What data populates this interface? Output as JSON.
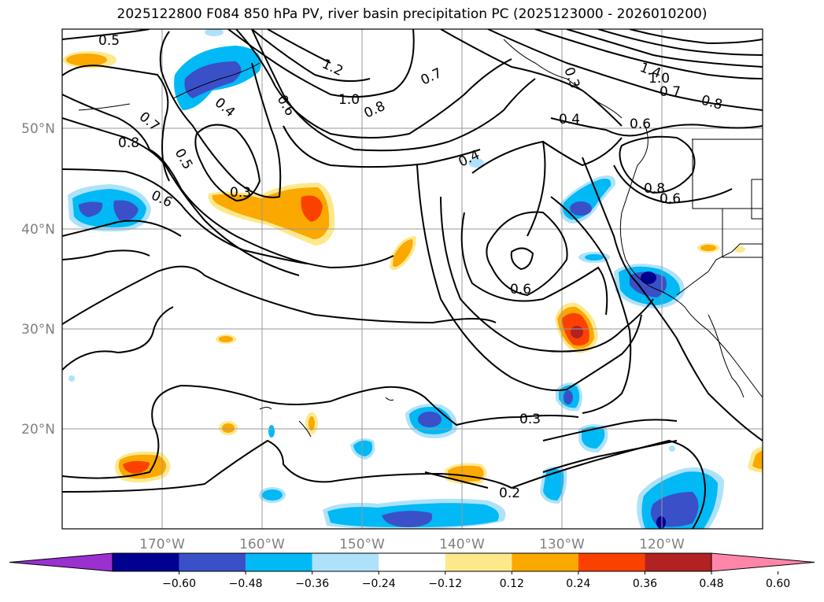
{
  "title": "2025122800 F084 850 hPa PV, river basin precipitation PC (2025123000 - 2026010200)",
  "lat_labels": [
    "50°N",
    "40°N",
    "30°N",
    "20°N"
  ],
  "lon_labels": [
    "170°W",
    "160°W",
    "150°W",
    "140°W",
    "130°W",
    "120°W"
  ],
  "contour_labels": [
    "0.5",
    "0.7",
    "0.8",
    "0.5",
    "0.6",
    "0.4",
    "0.6",
    "0.3",
    "1.2",
    "1.0",
    "0.8",
    "0.7",
    "0.4",
    "1.4",
    "1.0",
    "0.7",
    "0.8",
    "0.3",
    "0.4",
    "0.6",
    "0.8",
    "0.6",
    "0.6",
    "0.3",
    "0.2"
  ],
  "colorbar": {
    "colors": [
      "#9b30d0",
      "#000091",
      "#3a50c8",
      "#00b9f5",
      "#aee2fa",
      "#ffffff",
      "#fde98c",
      "#fba800",
      "#fb4100",
      "#b22222",
      "#ff86aa"
    ],
    "ticks": [
      "−0.60",
      "−0.48",
      "−0.36",
      "−0.24",
      "−0.12",
      "0.12",
      "0.24",
      "0.36",
      "0.48",
      "0.60"
    ]
  }
}
